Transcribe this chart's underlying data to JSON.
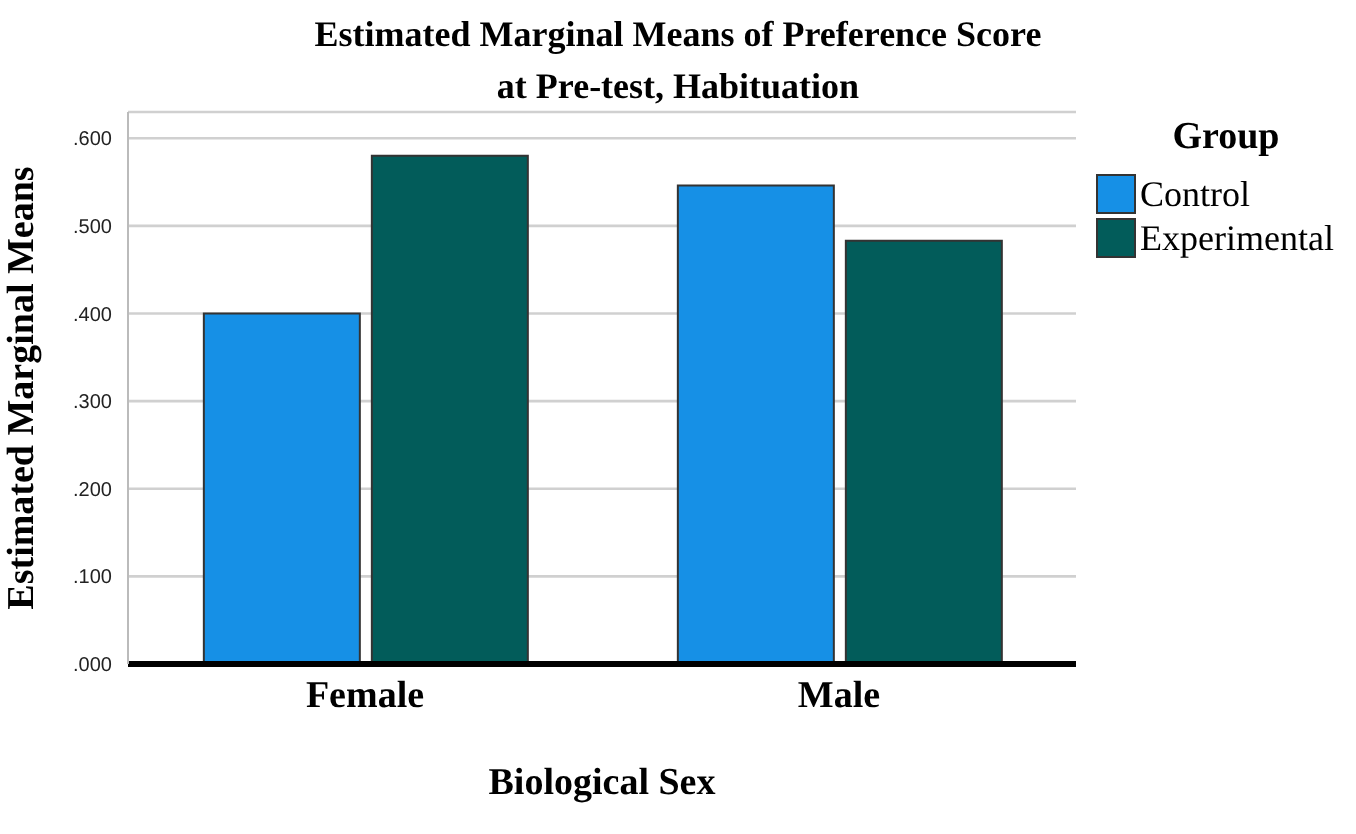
{
  "chart_data": {
    "type": "bar",
    "title": "Estimated Marginal Means of Preference Score",
    "subtitle": "at Pre-test, Habituation",
    "xlabel": "Biological Sex",
    "ylabel": "Estimated Marginal Means",
    "legend_title": "Group",
    "categories": [
      "Female",
      "Male"
    ],
    "series": [
      {
        "name": "Control",
        "color": "#1690e6",
        "values": [
          0.4,
          0.546
        ]
      },
      {
        "name": "Experimental",
        "color": "#025c5a",
        "values": [
          0.58,
          0.483
        ]
      }
    ],
    "ylim": [
      0,
      0.63
    ],
    "yticks": [
      {
        "value": 0,
        "label": ".000"
      },
      {
        "value": 0.1,
        "label": ".100"
      },
      {
        "value": 0.2,
        "label": ".200"
      },
      {
        "value": 0.3,
        "label": ".300"
      },
      {
        "value": 0.4,
        "label": ".400"
      },
      {
        "value": 0.5,
        "label": ".500"
      },
      {
        "value": 0.6,
        "label": ".600"
      }
    ],
    "grid": "y",
    "legend": "top right"
  }
}
